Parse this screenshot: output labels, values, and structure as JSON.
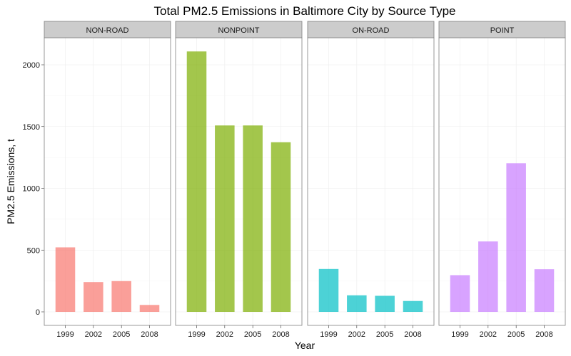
{
  "chart_data": {
    "type": "bar",
    "title": "Total PM2.5 Emissions in Baltimore City by Source Type",
    "xlabel": "Year",
    "ylabel": "PM2.5 Emissions, t",
    "categories": [
      "1999",
      "2002",
      "2005",
      "2008"
    ],
    "ylim": [
      0,
      2200
    ],
    "yticks": [
      0,
      500,
      1000,
      1500,
      2000
    ],
    "grid": true,
    "legend": "none",
    "facets": [
      {
        "name": "NON-ROAD",
        "color": "#F8766D",
        "values": [
          522,
          241,
          249,
          56
        ]
      },
      {
        "name": "NONPOINT",
        "color": "#7CAE00",
        "values": [
          2108,
          1509,
          1509,
          1373
        ]
      },
      {
        "name": "ON-ROAD",
        "color": "#00BFC4",
        "values": [
          347,
          134,
          130,
          88
        ]
      },
      {
        "name": "POINT",
        "color": "#C77CFF",
        "values": [
          297,
          570,
          1203,
          345
        ]
      }
    ]
  }
}
